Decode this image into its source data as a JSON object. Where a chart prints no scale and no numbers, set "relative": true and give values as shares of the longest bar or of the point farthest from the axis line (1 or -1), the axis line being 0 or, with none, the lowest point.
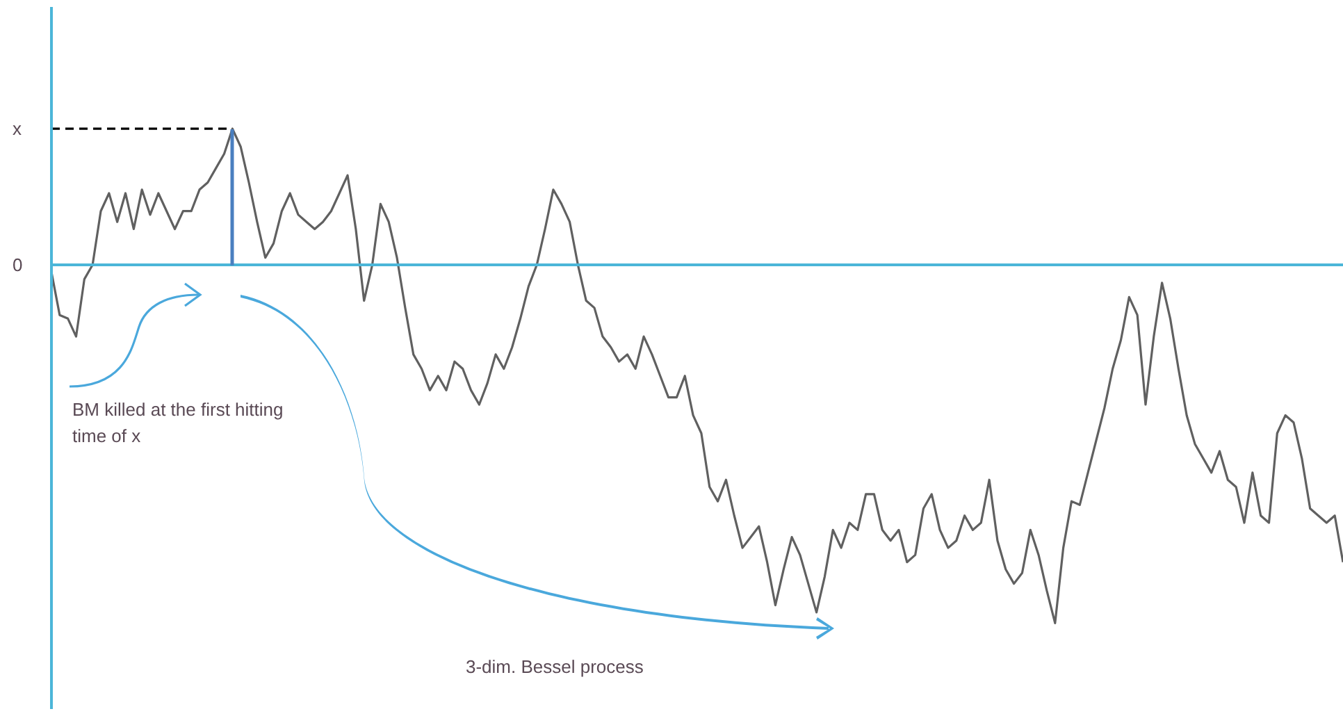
{
  "chart_data": {
    "type": "line",
    "relative": true,
    "categories": [
      null,
      null,
      null,
      null,
      null,
      null,
      null,
      null,
      null,
      null,
      null,
      null,
      null,
      null,
      null,
      null,
      null,
      null,
      null,
      null,
      null,
      null,
      null,
      null,
      null,
      null,
      null,
      null,
      null,
      null,
      null,
      null,
      null,
      null,
      null,
      null,
      null,
      null,
      null,
      null,
      null,
      null,
      null,
      null,
      null,
      null,
      null,
      null,
      null,
      null,
      null,
      null,
      null,
      null,
      null,
      null,
      null,
      null,
      null,
      null,
      null,
      null,
      null,
      null,
      null,
      null,
      null,
      null,
      null,
      null,
      null,
      null,
      null,
      null,
      null,
      null,
      null,
      null,
      null,
      null,
      null,
      null,
      null,
      null,
      null,
      null,
      null,
      null,
      null,
      null,
      null,
      null,
      null,
      null,
      null,
      null,
      null,
      null,
      null,
      null,
      null,
      null,
      null,
      null,
      null,
      null,
      null,
      null,
      null,
      null,
      null,
      null,
      null,
      null,
      null,
      null,
      null,
      null,
      null,
      null,
      null,
      null,
      null,
      null,
      null,
      null,
      null,
      null,
      null,
      null,
      null,
      null,
      null,
      null,
      null,
      null,
      null,
      null,
      null,
      null,
      null,
      null,
      null,
      null,
      null,
      null,
      null,
      null,
      null,
      null,
      null,
      null,
      null,
      null,
      null,
      null,
      null,
      null
    ],
    "series": [
      {
        "color": "#606060",
        "values": [
          -0.02,
          -0.14,
          -0.15,
          -0.2,
          -0.04,
          0,
          0.15,
          0.2,
          0.12,
          0.2,
          0.1,
          0.21,
          0.14,
          0.2,
          0.15,
          0.1,
          0.15,
          0.15,
          0.21,
          0.23,
          0.27,
          0.31,
          0.38,
          0.33,
          0.23,
          0.12,
          0.02,
          0.06,
          0.15,
          0.2,
          0.14,
          0.12,
          0.1,
          0.12,
          0.15,
          0.2,
          0.25,
          0.1,
          -0.1,
          0,
          0.17,
          0.12,
          0.02,
          -0.12,
          -0.25,
          -0.29,
          -0.35,
          -0.31,
          -0.35,
          -0.27,
          -0.29,
          -0.35,
          -0.39,
          -0.33,
          -0.25,
          -0.29,
          -0.23,
          -0.15,
          -0.06,
          0,
          0.1,
          0.21,
          0.17,
          0.12,
          0,
          -0.1,
          -0.12,
          -0.2,
          -0.23,
          -0.27,
          -0.25,
          -0.29,
          -0.2,
          -0.25,
          -0.31,
          -0.37,
          -0.37,
          -0.31,
          -0.42,
          -0.47,
          -0.62,
          -0.66,
          -0.6,
          -0.7,
          -0.79,
          -0.76,
          -0.73,
          -0.83,
          -0.95,
          -0.85,
          -0.76,
          -0.81,
          -0.89,
          -0.97,
          -0.87,
          -0.74,
          -0.79,
          -0.72,
          -0.74,
          -0.64,
          -0.64,
          -0.74,
          -0.77,
          -0.74,
          -0.83,
          -0.81,
          -0.68,
          -0.64,
          -0.74,
          -0.79,
          -0.77,
          -0.7,
          -0.74,
          -0.72,
          -0.6,
          -0.77,
          -0.85,
          -0.89,
          -0.86,
          -0.74,
          -0.81,
          -0.91,
          -1,
          -0.79,
          -0.66,
          -0.67,
          -0.58,
          -0.49,
          -0.4,
          -0.29,
          -0.21,
          -0.09,
          -0.14,
          -0.39,
          -0.2,
          -0.05,
          -0.15,
          -0.29,
          -0.42,
          -0.5,
          -0.54,
          -0.58,
          -0.52,
          -0.6,
          -0.62,
          -0.72,
          -0.58,
          -0.7,
          -0.72,
          -0.47,
          -0.42,
          -0.44,
          -0.54,
          -0.68,
          -0.7,
          -0.72,
          -0.7,
          -0.83
        ]
      },
      {
        "color": "#000000",
        "line_style": "dashed",
        "values": [
          0.38,
          0.38,
          0.38,
          0.38,
          0.38,
          0.38,
          0.38,
          0.38,
          0.38,
          0.38,
          0.38,
          0.38,
          0.38,
          0.38,
          0.38,
          0.38,
          0.38,
          0.38,
          0.38,
          0.38,
          0.38,
          0.38,
          0.38,
          null,
          null,
          null,
          null,
          null,
          null,
          null,
          null,
          null,
          null,
          null,
          null,
          null,
          null,
          null,
          null,
          null,
          null,
          null,
          null,
          null,
          null,
          null,
          null,
          null,
          null,
          null,
          null,
          null,
          null,
          null,
          null,
          null,
          null,
          null,
          null,
          null,
          null,
          null,
          null,
          null,
          null,
          null,
          null,
          null,
          null,
          null,
          null,
          null,
          null,
          null,
          null,
          null,
          null,
          null,
          null,
          null,
          null,
          null,
          null,
          null,
          null,
          null,
          null,
          null,
          null,
          null,
          null,
          null,
          null,
          null,
          null,
          null,
          null,
          null,
          null,
          null,
          null,
          null,
          null,
          null,
          null,
          null,
          null,
          null,
          null,
          null,
          null,
          null,
          null,
          null,
          null,
          null,
          null,
          null,
          null,
          null,
          null,
          null,
          null,
          null,
          null,
          null,
          null,
          null,
          null,
          null,
          null,
          null,
          null,
          null,
          null,
          null,
          null,
          null,
          null,
          null,
          null,
          null,
          null,
          null,
          null,
          null,
          null,
          null,
          null,
          null,
          null,
          null,
          null,
          null,
          null,
          null,
          null,
          null
        ]
      }
    ],
    "grid": false,
    "legend": false,
    "marker": "none",
    "line_style": "solid",
    "ref_lines": [
      {
        "axis": "y",
        "value": 0,
        "color": "#4bb6d8"
      }
    ],
    "annotations": [
      "BM killed at the first hitting time of x",
      "3-dim. Bessel process",
      "x",
      "0"
    ]
  }
}
